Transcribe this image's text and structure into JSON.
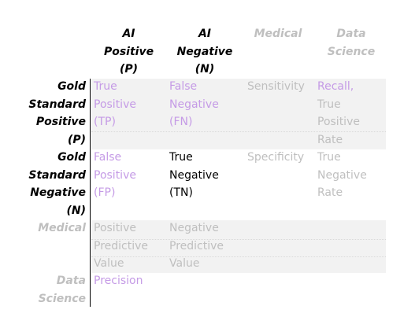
{
  "columns": [
    {
      "lines": [
        "AI",
        "Positive",
        "(P)"
      ]
    },
    {
      "lines": [
        "AI",
        "Negative",
        "(N)"
      ]
    },
    {
      "lines": [
        "Medical"
      ]
    },
    {
      "lines": [
        "Data",
        "Science"
      ]
    }
  ],
  "rows": [
    {
      "header": [
        "Gold",
        "Standard",
        "Positive",
        "(P)"
      ],
      "cells": [
        [
          "True",
          "Positive",
          "(TP)"
        ],
        [
          "False",
          "Negative",
          "(FN)"
        ],
        [
          "Sensitivity"
        ],
        [
          "Recall,",
          "True",
          "Positive",
          "Rate"
        ]
      ]
    },
    {
      "header": [
        "Gold",
        "Standard",
        "Negative",
        "(N)"
      ],
      "cells": [
        [
          "False",
          "Positive",
          "(FP)"
        ],
        [
          "True",
          "Negative",
          "(TN)"
        ],
        [
          "Specificity"
        ],
        [
          "True",
          "Negative",
          "Rate"
        ]
      ]
    },
    {
      "header": [
        "Medical"
      ],
      "cells": [
        [
          "Positive",
          "Predictive",
          "Value"
        ],
        [
          "Negative",
          "Predictive",
          "Value"
        ],
        [],
        []
      ]
    },
    {
      "header": [
        "Data",
        "Science"
      ],
      "cells": [
        [
          "Precision"
        ],
        [],
        [],
        []
      ]
    }
  ],
  "colors": {
    "text_dark": "#000000",
    "text_light_gray": "#bfbfbf",
    "text_purple": "#c59be6",
    "text_gray": "#a6a6a6",
    "shade_band": "#f2f2f2",
    "divider": "#000000"
  }
}
